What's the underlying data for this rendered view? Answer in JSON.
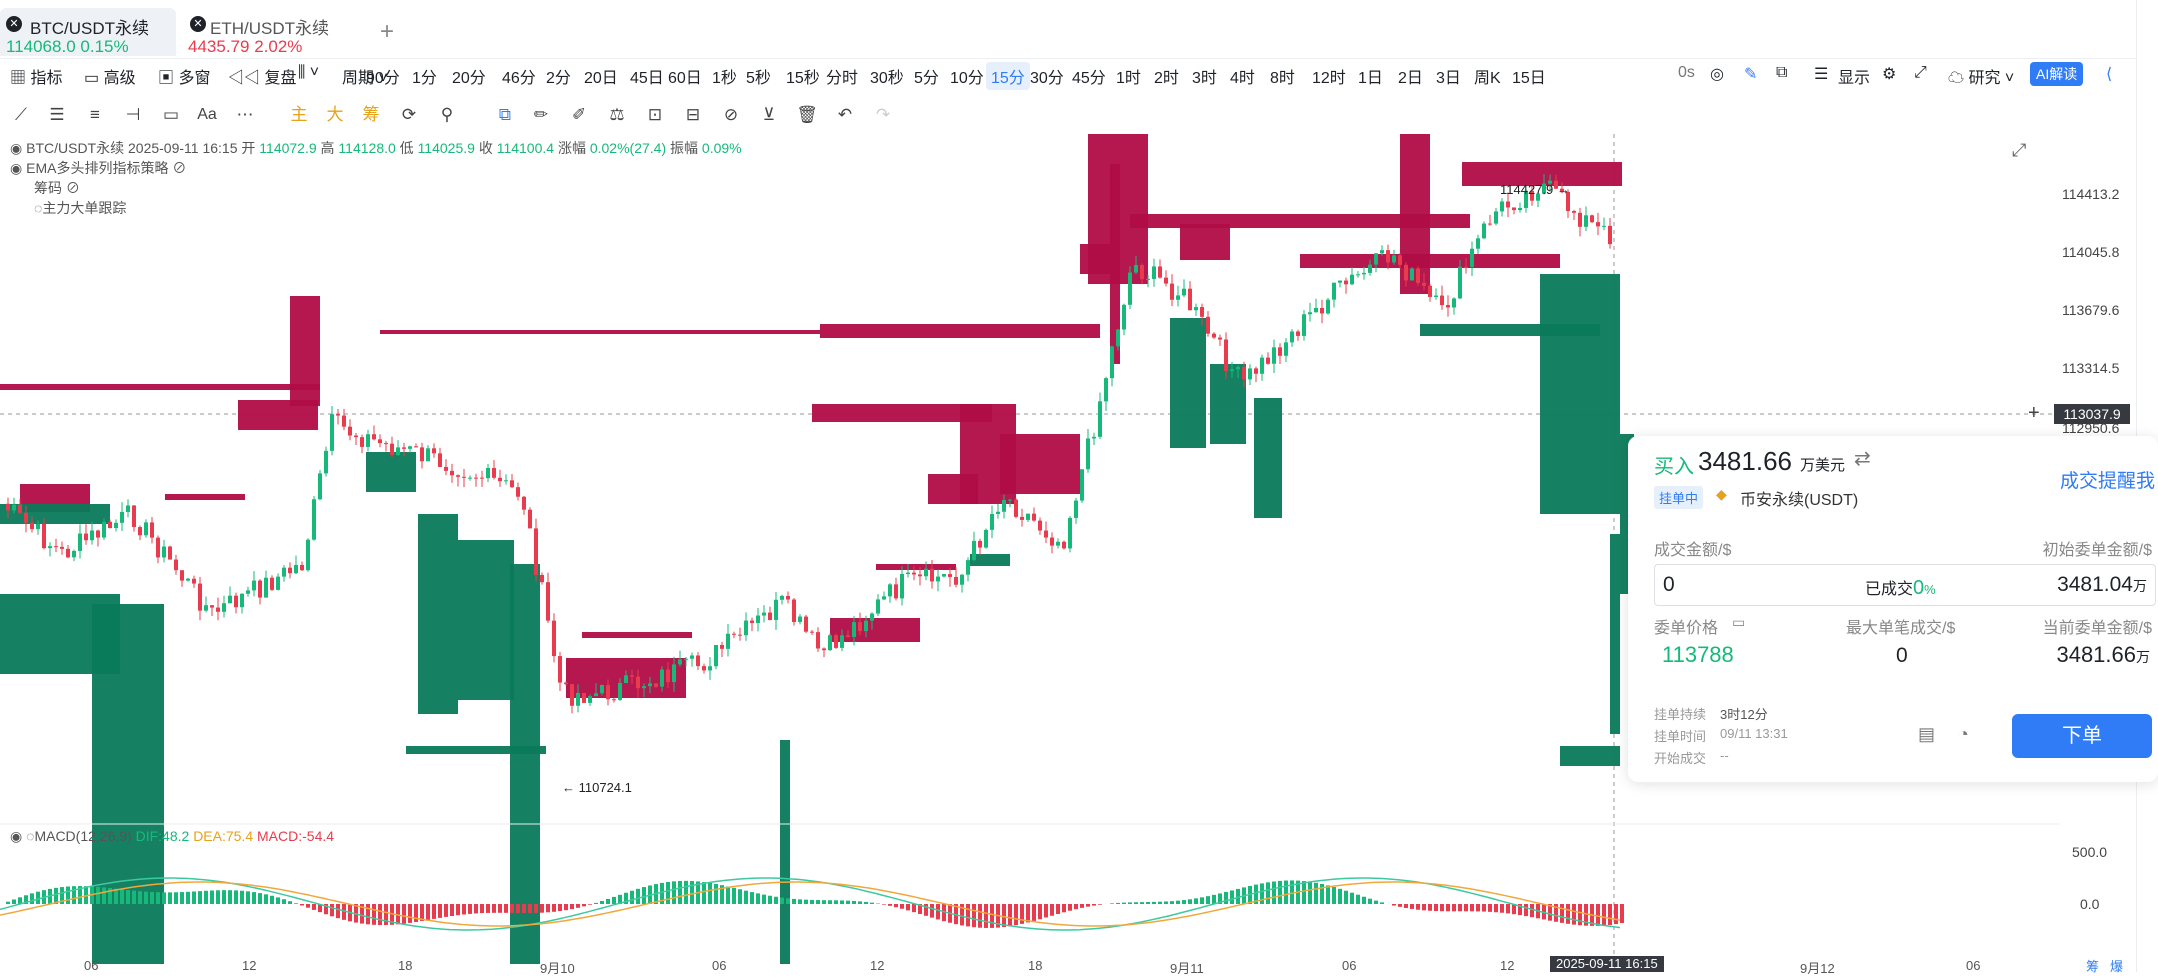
{
  "tabs": [
    {
      "name": "BTC/USDT永续",
      "price": "114068.0",
      "change": "0.15%",
      "color": "#16b979"
    },
    {
      "name": "ETH/USDT永续",
      "price": "4435.79",
      "change": "2.02%",
      "color": "#e83c4e"
    }
  ],
  "toolbar": {
    "indicators": "指标",
    "advanced": "高级",
    "multiwindow": "多窗",
    "replay": "复盘",
    "period": "周期",
    "intervals": [
      "90分",
      "1分",
      "20分",
      "46分",
      "2分",
      "20日",
      "45日",
      "60日",
      "1秒",
      "5秒",
      "15秒",
      "分时",
      "30秒",
      "5分",
      "10分",
      "15分",
      "30分",
      "45分",
      "1时",
      "2时",
      "3时",
      "4时",
      "8时",
      "12时",
      "1日",
      "2日",
      "3日",
      "周K",
      "15日"
    ],
    "selected_interval": "15分",
    "countdown": "0s",
    "display": "显示",
    "research": "研究",
    "ai": "AI解读"
  },
  "drawing_tools": {
    "main": "主",
    "big": "大",
    "chips": "筹",
    "text_tool": "Aa"
  },
  "legend": {
    "symbol": "BTC/USDT永续",
    "datetime": "2025-09-11 16:15",
    "open_label": "开",
    "open": "114072.9",
    "high_label": "高",
    "high": "114128.0",
    "low_label": "低",
    "low": "114025.9",
    "close_label": "收",
    "close": "114100.4",
    "chg_label": "涨幅",
    "chg": "0.02%(27.4)",
    "amp_label": "振幅",
    "amp": "0.09%",
    "strategy": "EMA多头排列指标策略",
    "chips": "筹码",
    "tracker": "主力大单跟踪"
  },
  "macd": {
    "name": "MACD(12,26,9)",
    "dif": "DIF:48.2",
    "dea": "DEA:75.4",
    "macd": "MACD:-54.4"
  },
  "price_axis": [
    "114413.2",
    "114045.8",
    "113679.6",
    "113314.5",
    "112950.6",
    "500.0",
    "0.0"
  ],
  "current_price": "113037.9",
  "annotations": {
    "high": "114427.9",
    "low": "110724.1"
  },
  "time_axis": [
    "06",
    "12",
    "18",
    "9月10",
    "06",
    "12",
    "18",
    "9月11",
    "06",
    "12",
    "9月12",
    "06"
  ],
  "time_tag": "2025-09-11 16:15",
  "order_panel": {
    "side": "买入",
    "amount": "3481.66",
    "amount_unit": "万美元",
    "remind": "成交提醒我",
    "status": "挂单中",
    "exchange": "币安永续(USDT)",
    "filled_amount_label": "成交金额/$",
    "initial_amount_label": "初始委单金额/$",
    "filled_value": "0",
    "filled_pct_label": "已成交",
    "filled_pct": "0",
    "filled_pct_unit": "%",
    "initial_amount": "3481.04",
    "wan": "万",
    "price_label": "委单价格",
    "max_fill_label": "最大单笔成交/$",
    "current_amount_label": "当前委单金额/$",
    "price": "113788",
    "max_fill": "0",
    "current_amount": "3481.66",
    "duration_label": "挂单持续",
    "duration": "3时12分",
    "time_label": "挂单时间",
    "time": "09/11 13:31",
    "start_label": "开始成交",
    "start": "--",
    "order_button": "下单"
  },
  "bottom_tags": {
    "a": "筹",
    "b": "爆"
  },
  "colors": {
    "up": "#16b979",
    "down": "#e83c4e",
    "wall_red": "#b00c45",
    "wall_green": "#0a7a5a",
    "accent": "#2f7cf6"
  }
}
